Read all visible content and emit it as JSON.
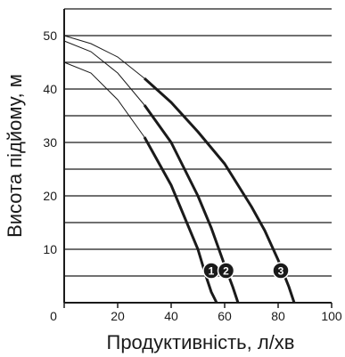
{
  "chart_data": {
    "type": "line",
    "xlabel": "Продуктивність, л/хв",
    "ylabel": "Висота підйому, м",
    "xlim": [
      0,
      100
    ],
    "ylim": [
      0,
      55
    ],
    "xticks": [
      0,
      20,
      40,
      60,
      80,
      100
    ],
    "yticks": [
      10,
      20,
      30,
      40,
      50
    ],
    "grid": "horizontal",
    "series": [
      {
        "name": "1",
        "x": [
          0,
          10,
          20,
          30,
          40,
          45,
          50,
          53,
          55,
          57
        ],
        "y": [
          45,
          43,
          38,
          31,
          22,
          16,
          10,
          5,
          2,
          0
        ]
      },
      {
        "name": "2",
        "x": [
          0,
          10,
          20,
          30,
          40,
          50,
          55,
          60,
          63,
          65
        ],
        "y": [
          49,
          47,
          43,
          37,
          30,
          20,
          14,
          7,
          3,
          0
        ]
      },
      {
        "name": "3",
        "x": [
          0,
          10,
          20,
          30,
          40,
          50,
          60,
          70,
          75,
          80,
          84,
          86
        ],
        "y": [
          50,
          48.5,
          46,
          42,
          37.5,
          32,
          26,
          18,
          13.5,
          8,
          3,
          0
        ]
      }
    ],
    "markers": [
      {
        "label": "1",
        "x": 55,
        "y": 6
      },
      {
        "label": "2",
        "x": 60.5,
        "y": 6
      },
      {
        "label": "3",
        "x": 81,
        "y": 6
      }
    ]
  }
}
